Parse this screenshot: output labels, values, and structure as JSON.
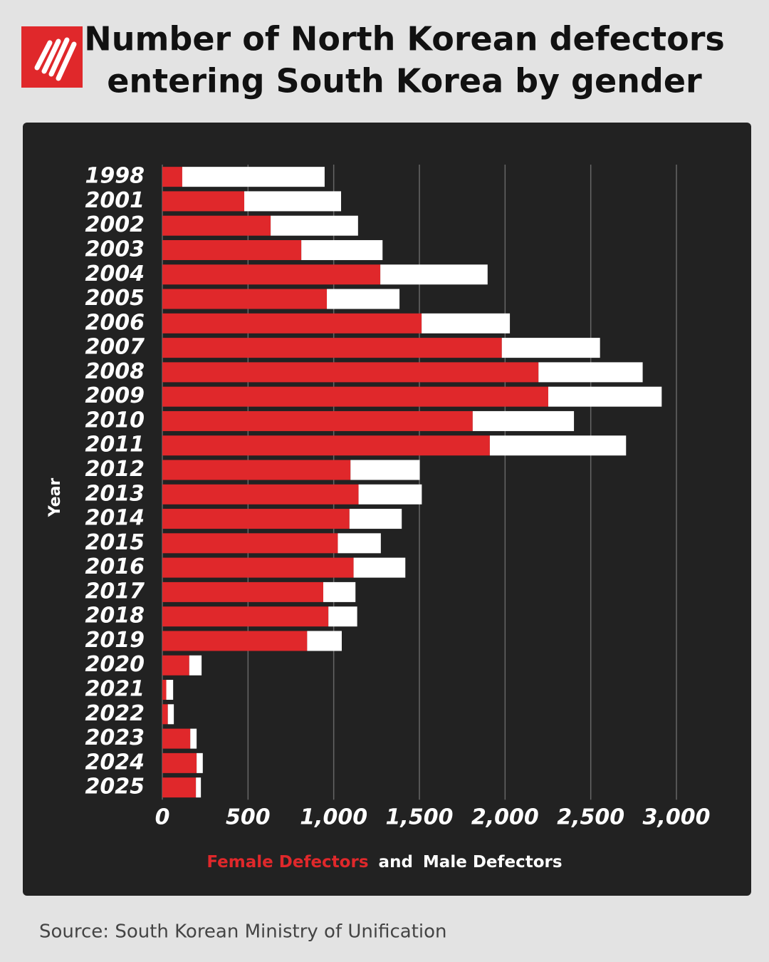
{
  "chart_data": {
    "type": "stacked-barh",
    "title": [
      "Number of North Korean defectors",
      "entering South Korea by gender"
    ],
    "y_label": "Year",
    "categories": [
      "1998",
      "2001",
      "2002",
      "2003",
      "2004",
      "2005",
      "2006",
      "2007",
      "2008",
      "2009",
      "2010",
      "2011",
      "2012",
      "2013",
      "2014",
      "2015",
      "2016",
      "2017",
      "2018",
      "2019",
      "2020",
      "2021",
      "2022",
      "2023",
      "2024",
      "2025"
    ],
    "series": [
      {
        "name": "Female Defectors",
        "color": "#e0282b",
        "values": [
          116,
          478,
          632,
          811,
          1272,
          960,
          1513,
          1981,
          2195,
          2252,
          1811,
          1911,
          1098,
          1145,
          1092,
          1024,
          1116,
          939,
          969,
          845,
          157,
          23,
          32,
          163,
          200,
          196
        ]
      },
      {
        "name": "Male Defectors",
        "color": "#ffffff",
        "values": [
          831,
          565,
          510,
          474,
          626,
          424,
          515,
          573,
          608,
          662,
          591,
          795,
          404,
          369,
          305,
          251,
          302,
          188,
          168,
          202,
          72,
          40,
          35,
          37,
          36,
          29
        ]
      }
    ],
    "legend_joiner": "and",
    "xlim": [
      0,
      3000
    ],
    "xticks": [
      0,
      {
        "value": 500,
        "label": "500"
      },
      {
        "value": 1000,
        "label": "1,000"
      },
      {
        "value": 1500,
        "label": "1,500"
      },
      {
        "value": 2000,
        "label": "2,000"
      },
      {
        "value": 2500,
        "label": "2,500"
      },
      {
        "value": 3000,
        "label": "3,000"
      }
    ],
    "grid": true,
    "source": "Source: South Korean Ministry of Unification"
  }
}
